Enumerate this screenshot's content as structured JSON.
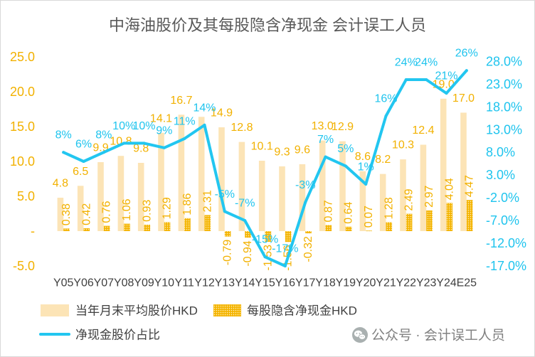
{
  "chart_data": {
    "type": "bar",
    "title": "中海油股价及其每股隐含净现金 会计误工人员",
    "categories": [
      "Y05",
      "Y06",
      "Y07",
      "Y08",
      "Y09",
      "Y10",
      "Y11",
      "Y12",
      "Y13",
      "Y14",
      "Y15",
      "Y16",
      "Y17",
      "Y18",
      "Y19",
      "Y20",
      "Y21",
      "Y22",
      "Y23",
      "Y24",
      "E25"
    ],
    "series": [
      {
        "name": "当年月末平均股价HKD",
        "type": "bar",
        "axis": "y",
        "values": [
          4.8,
          6.5,
          9.9,
          10.8,
          9.8,
          14.1,
          16.7,
          16.4,
          14.9,
          12.8,
          10.1,
          9.3,
          9.6,
          13.0,
          12.9,
          8.6,
          8.2,
          10.3,
          12.4,
          19.0,
          17.0
        ],
        "labels": [
          "4.8",
          "6.5",
          "9.9",
          "10.8",
          "9.8",
          "14.1",
          "16.7",
          "",
          "14.9",
          "12.8",
          "10.1",
          "9.3",
          "9.6",
          "13.0",
          "12.9",
          "8.6",
          "8.2",
          "10.3",
          "12.4",
          "19.0",
          "17.0"
        ]
      },
      {
        "name": "每股隐含净现金HKD",
        "type": "bar",
        "axis": "y",
        "values": [
          0.38,
          0.42,
          0.76,
          1.06,
          0.93,
          1.29,
          1.86,
          2.31,
          -0.79,
          -0.94,
          -1.53,
          -1.56,
          -0.32,
          0.87,
          0.64,
          0.07,
          1.28,
          2.49,
          2.97,
          4.04,
          4.47
        ],
        "labels": [
          "0.38",
          "0.42",
          "0.76",
          "1.06",
          "0.93",
          "1.29",
          "1.86",
          "2.31",
          "-0.79",
          "-0.94",
          "-1.53",
          "-1.56",
          "-0.32",
          "0.87",
          "0.64",
          "0.07",
          "1.28",
          "2.49",
          "2.97",
          "4.04",
          "4.47"
        ]
      },
      {
        "name": "净现金股价占比",
        "type": "line",
        "axis": "y2",
        "values": [
          8,
          6,
          8,
          10,
          10,
          9,
          11,
          14,
          -5,
          -7,
          -15,
          -17,
          -3,
          7,
          5,
          1,
          16,
          24,
          24,
          21,
          26
        ],
        "labels": [
          "8%",
          "6%",
          "8%",
          "10%",
          "10%",
          "9%",
          "11%",
          "14%",
          "-5%",
          "-7%",
          "-15%",
          "-17%",
          "-3%",
          "7%",
          "5%",
          "1%",
          "16%",
          "24%",
          "24%",
          "21%",
          "26%"
        ]
      }
    ],
    "y_axis": {
      "range": [
        -5,
        25
      ],
      "ticks": [
        25,
        20,
        15,
        10,
        5,
        0,
        -5
      ],
      "tick_labels": [
        "25.0",
        "20.0",
        "15.0",
        "10.0",
        "5.0",
        "-",
        "-5.0"
      ]
    },
    "y2_axis": {
      "range": [
        -17,
        29
      ],
      "ticks": [
        28,
        23,
        18,
        13,
        8,
        3,
        -2,
        -7,
        -12,
        -17
      ],
      "tick_labels": [
        "28.0%",
        "23.0%",
        "18.0%",
        "13.0%",
        "8.0%",
        "3.0%",
        "-2.0%",
        "-7.0%",
        "-12.0%",
        "-17.0%"
      ]
    },
    "grid": false,
    "legend": "bottom-left",
    "colors": {
      "price_bar": "#FCE4B6",
      "net_cash_bar": "#F4B400",
      "line": "#22C6F0",
      "left_axis": "#F2B100",
      "right_axis": "#1FC4EE",
      "bar_labels": "#F2B100",
      "line_labels": "#1FC4EE"
    }
  },
  "watermark": {
    "icon": "wechat-icon",
    "text": "公众号 · 会计误工人员"
  }
}
